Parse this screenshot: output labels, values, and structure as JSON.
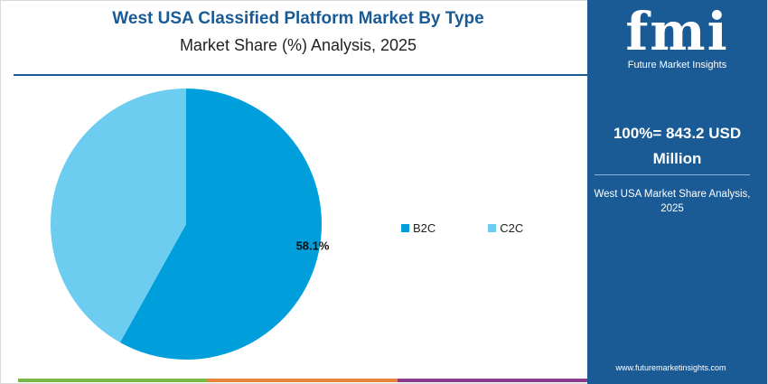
{
  "chart_data": {
    "type": "pie",
    "title": "West USA Classified Platform Market By Type",
    "subtitle": "Market Share (%) Analysis, 2025",
    "slices": [
      {
        "label": "B2C",
        "value": 58.1,
        "color": "#009fdb",
        "data_label": "58.1%"
      },
      {
        "label": "C2C",
        "value": 41.9,
        "color": "#6dcdf0",
        "data_label": ""
      }
    ],
    "legend_position": "right"
  },
  "sidebar": {
    "logo": "fmi",
    "logo_caption": "Future Market Insights",
    "total_line1": "100%= 843.2 USD",
    "total_line2": "Million",
    "note": "West USA Market Share Analysis, 2025",
    "url": "www.futuremarketinsights.com"
  },
  "colors": {
    "brand_blue": "#1a5b96",
    "bottom_bar": [
      "#7ab648",
      "#e8833a",
      "#8b3a8f"
    ]
  }
}
